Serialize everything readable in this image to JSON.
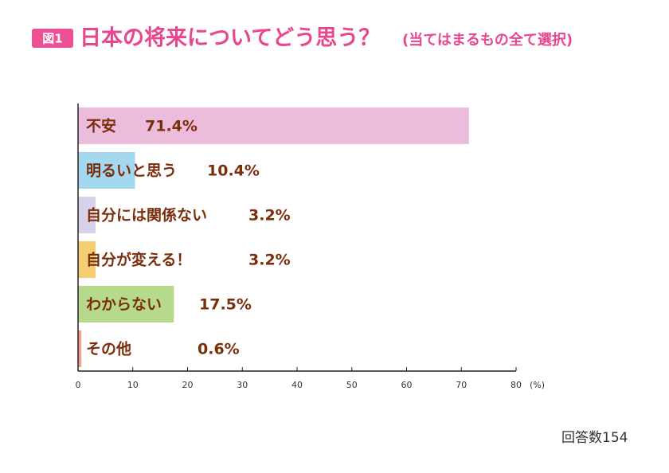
{
  "chart_data": {
    "type": "bar",
    "orientation": "horizontal",
    "badge": "図1",
    "title": "日本の将来についてどう思う？",
    "subtitle": "(当てはまるもの全て選択)",
    "categories": [
      "不安",
      "明るいと思う",
      "自分には関係ない",
      "自分が変える！",
      "わからない",
      "その他"
    ],
    "values": [
      71.4,
      10.4,
      3.2,
      3.2,
      17.5,
      0.6
    ],
    "value_labels": [
      "71.4%",
      "10.4%",
      "3.2%",
      "3.2%",
      "17.5%",
      "0.6%"
    ],
    "colors": [
      "#ebbcdb",
      "#a3d8ef",
      "#d7d1ea",
      "#f5cd72",
      "#b7d98c",
      "#f0a08f"
    ],
    "xlim": [
      0,
      80
    ],
    "xticks": [
      0,
      10,
      20,
      30,
      40,
      50,
      60,
      70,
      80
    ],
    "x_unit": "(%)",
    "note": "回答数154"
  }
}
